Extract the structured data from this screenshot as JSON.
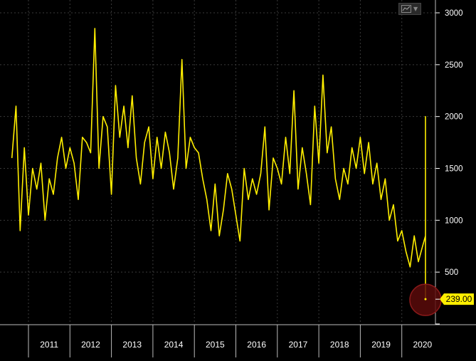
{
  "chart_data": {
    "type": "line",
    "title": "",
    "xlabel": "",
    "ylabel": "",
    "ylim": [
      0,
      3000
    ],
    "y_ticks": [
      500,
      1000,
      1500,
      2000,
      2500,
      3000
    ],
    "y_tick_labels": [
      "500",
      "1000",
      "1500",
      "2000",
      "2500",
      "3000"
    ],
    "x_tick_labels": [
      "2011",
      "2012",
      "2013",
      "2014",
      "2015",
      "2016",
      "2017",
      "2018",
      "2019",
      "2020"
    ],
    "grid": "dashed horizontal and vertical",
    "line_color": "#ffee00",
    "last_value_label": "239.00",
    "last_value": 239,
    "x": [
      2010.0,
      2010.1,
      2010.2,
      2010.3,
      2010.4,
      2010.5,
      2010.6,
      2010.7,
      2010.8,
      2010.9,
      2011.0,
      2011.1,
      2011.2,
      2011.3,
      2011.4,
      2011.5,
      2011.6,
      2011.7,
      2011.8,
      2011.9,
      2012.0,
      2012.1,
      2012.2,
      2012.3,
      2012.4,
      2012.5,
      2012.6,
      2012.7,
      2012.8,
      2012.9,
      2013.0,
      2013.1,
      2013.2,
      2013.3,
      2013.4,
      2013.5,
      2013.6,
      2013.7,
      2013.8,
      2013.9,
      2014.0,
      2014.1,
      2014.2,
      2014.3,
      2014.4,
      2014.5,
      2014.6,
      2014.7,
      2014.8,
      2014.9,
      2015.0,
      2015.1,
      2015.2,
      2015.3,
      2015.4,
      2015.5,
      2015.6,
      2015.7,
      2015.8,
      2015.9,
      2016.0,
      2016.1,
      2016.2,
      2016.3,
      2016.4,
      2016.5,
      2016.6,
      2016.7,
      2016.8,
      2016.9,
      2017.0,
      2017.1,
      2017.2,
      2017.3,
      2017.4,
      2017.5,
      2017.6,
      2017.7,
      2017.8,
      2017.9,
      2018.0,
      2018.1,
      2018.2,
      2018.3,
      2018.4,
      2018.5,
      2018.6,
      2018.7,
      2018.8,
      2018.9,
      2019.0,
      2019.1,
      2019.2,
      2019.3,
      2019.4,
      2019.5,
      2019.6,
      2019.7,
      2019.8,
      2019.9,
      2020.0,
      2020.07,
      2020.13,
      2020.2,
      2020.27,
      2020.33,
      2020.4
    ],
    "values": [
      1600,
      2100,
      900,
      1700,
      1050,
      1500,
      1300,
      1550,
      1000,
      1400,
      1250,
      1600,
      1800,
      1500,
      1700,
      1550,
      1200,
      1800,
      1750,
      1650,
      2850,
      1500,
      2000,
      1900,
      1250,
      2300,
      1800,
      2100,
      1700,
      2200,
      1600,
      1350,
      1750,
      1900,
      1400,
      1800,
      1500,
      1850,
      1650,
      1300,
      1600,
      2550,
      1500,
      1800,
      1700,
      1650,
      1400,
      1200,
      900,
      1350,
      850,
      1100,
      1450,
      1300,
      1050,
      800,
      1500,
      1200,
      1400,
      1250,
      1450,
      1900,
      1100,
      1600,
      1500,
      1350,
      1800,
      1450,
      2250,
      1300,
      1700,
      1450,
      1150,
      2100,
      1550,
      2400,
      1650,
      1900,
      1400,
      1200,
      1500,
      1350,
      1700,
      1500,
      1800,
      1450,
      1750,
      1350,
      1550,
      1200,
      1400,
      1000,
      1150,
      800,
      900,
      700,
      550,
      850,
      600,
      750,
      850,
      600,
      500,
      2000,
      1550,
      950,
      239
    ]
  }
}
